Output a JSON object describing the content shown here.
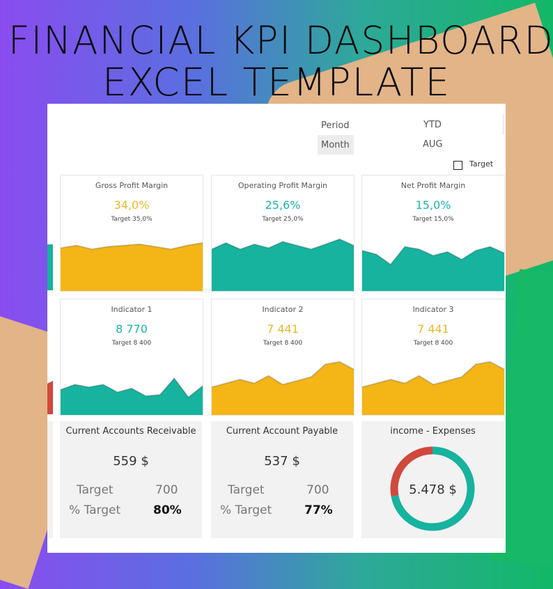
{
  "header": {
    "line1": "FINANCIAL KPI DASHBOARD",
    "line2": "EXCEL TEMPLATE"
  },
  "controls": {
    "period_label": "Period",
    "month_label": "Month",
    "ytd_label": "YTD",
    "aug_label": "AUG",
    "target_checkbox_label": "Target"
  },
  "colors": {
    "amber": "#f4b517",
    "teal": "#16b39f",
    "red": "#d1483c",
    "value_amber": "#e8b92a",
    "value_teal": "#1bb4b0"
  },
  "kpi_cards": [
    {
      "title": "Gross Profit Margin",
      "value": "34,0%",
      "target": "Target  35,0%",
      "color": "amber",
      "series": [
        0.68,
        0.72,
        0.66,
        0.7,
        0.72,
        0.74,
        0.7,
        0.66,
        0.72,
        0.76
      ]
    },
    {
      "title": "Operating Profit Margin",
      "value": "25,6%",
      "target": "Target  25,0%",
      "color": "teal",
      "series": [
        0.66,
        0.76,
        0.66,
        0.74,
        0.68,
        0.78,
        0.72,
        0.66,
        0.74,
        0.82,
        0.72
      ]
    },
    {
      "title": "Net Profit Margin",
      "value": "15,0%",
      "target": "Target  15,0%",
      "color": "teal",
      "series": [
        0.64,
        0.58,
        0.42,
        0.7,
        0.66,
        0.56,
        0.62,
        0.5,
        0.64,
        0.7,
        0.6
      ]
    },
    {
      "title": "Indicator 1",
      "value": "8 770",
      "target": "Target  8 400",
      "color": "teal",
      "series": [
        0.4,
        0.48,
        0.44,
        0.48,
        0.36,
        0.42,
        0.3,
        0.32,
        0.58,
        0.28,
        0.46
      ]
    },
    {
      "title": "Indicator 2",
      "value": "7 441",
      "target": "Target  8 400",
      "color": "amber",
      "series": [
        0.44,
        0.5,
        0.56,
        0.5,
        0.62,
        0.48,
        0.54,
        0.6,
        0.8,
        0.84,
        0.72
      ]
    },
    {
      "title": "Indicator 3",
      "value": "7 441",
      "target": "Target  8 400",
      "color": "amber",
      "series": [
        0.44,
        0.5,
        0.56,
        0.5,
        0.62,
        0.48,
        0.54,
        0.6,
        0.8,
        0.84,
        0.72
      ]
    }
  ],
  "stat_cards": [
    {
      "title": "Current Accounts Receivable",
      "value": "559 $",
      "target_label": "Target",
      "target_value": "700",
      "pct_label": "% Target",
      "pct_value": "80%"
    },
    {
      "title": "Current Account Payable",
      "value": "537 $",
      "target_label": "Target",
      "target_value": "700",
      "pct_label": "% Target",
      "pct_value": "77%"
    }
  ],
  "donut": {
    "title": "income - Expenses",
    "value": "5.478 $",
    "teal_fraction": 0.72
  }
}
